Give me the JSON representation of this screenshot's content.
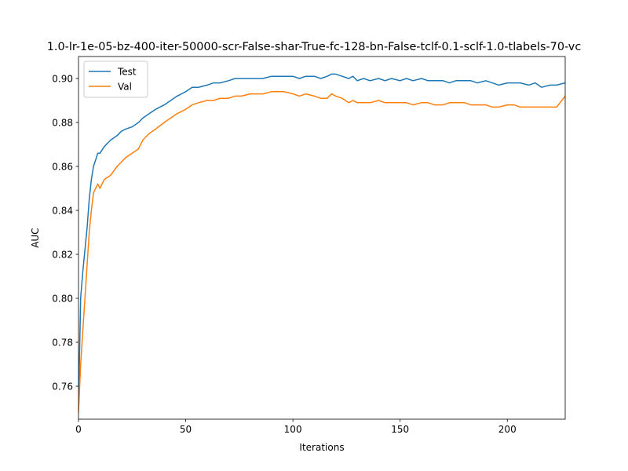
{
  "chart_data": {
    "type": "line",
    "title": "1.0-lr-1e-05-bz-400-iter-50000-scr-False-shar-True-fc-128-bn-False-tclf-0.1-sclf-1.0-tlabels-70-vc",
    "xlabel": "Iterations",
    "ylabel": "AUC",
    "xlim": [
      0,
      227
    ],
    "ylim": [
      0.745,
      0.91
    ],
    "xticks": [
      0,
      50,
      100,
      150,
      200
    ],
    "yticks": [
      0.76,
      0.78,
      0.8,
      0.82,
      0.84,
      0.86,
      0.88,
      0.9
    ],
    "ytick_labels": [
      "0.76",
      "0.78",
      "0.80",
      "0.82",
      "0.84",
      "0.86",
      "0.88",
      "0.90"
    ],
    "xtick_labels": [
      "0",
      "50",
      "100",
      "150",
      "200"
    ],
    "grid": false,
    "legend_position": "top-left",
    "series": [
      {
        "name": "Test",
        "color": "#1f77b4",
        "points": [
          [
            0,
            0.75
          ],
          [
            1,
            0.8
          ],
          [
            2,
            0.812
          ],
          [
            3,
            0.822
          ],
          [
            4,
            0.832
          ],
          [
            5,
            0.845
          ],
          [
            6,
            0.854
          ],
          [
            7,
            0.86
          ],
          [
            8,
            0.863
          ],
          [
            9,
            0.866
          ],
          [
            10,
            0.866
          ],
          [
            12,
            0.869
          ],
          [
            15,
            0.872
          ],
          [
            18,
            0.874
          ],
          [
            20,
            0.876
          ],
          [
            22,
            0.877
          ],
          [
            25,
            0.878
          ],
          [
            28,
            0.88
          ],
          [
            30,
            0.882
          ],
          [
            33,
            0.884
          ],
          [
            36,
            0.886
          ],
          [
            40,
            0.888
          ],
          [
            43,
            0.89
          ],
          [
            46,
            0.892
          ],
          [
            50,
            0.894
          ],
          [
            53,
            0.896
          ],
          [
            56,
            0.896
          ],
          [
            60,
            0.897
          ],
          [
            63,
            0.898
          ],
          [
            66,
            0.898
          ],
          [
            70,
            0.899
          ],
          [
            73,
            0.9
          ],
          [
            76,
            0.9
          ],
          [
            80,
            0.9
          ],
          [
            83,
            0.9
          ],
          [
            86,
            0.9
          ],
          [
            90,
            0.901
          ],
          [
            93,
            0.901
          ],
          [
            96,
            0.901
          ],
          [
            100,
            0.901
          ],
          [
            103,
            0.9
          ],
          [
            106,
            0.901
          ],
          [
            110,
            0.901
          ],
          [
            113,
            0.9
          ],
          [
            116,
            0.901
          ],
          [
            118,
            0.902
          ],
          [
            120,
            0.902
          ],
          [
            123,
            0.901
          ],
          [
            126,
            0.9
          ],
          [
            128,
            0.901
          ],
          [
            130,
            0.899
          ],
          [
            133,
            0.9
          ],
          [
            136,
            0.899
          ],
          [
            140,
            0.9
          ],
          [
            143,
            0.899
          ],
          [
            146,
            0.9
          ],
          [
            150,
            0.899
          ],
          [
            153,
            0.9
          ],
          [
            156,
            0.899
          ],
          [
            160,
            0.9
          ],
          [
            163,
            0.899
          ],
          [
            166,
            0.899
          ],
          [
            170,
            0.899
          ],
          [
            173,
            0.898
          ],
          [
            176,
            0.899
          ],
          [
            180,
            0.899
          ],
          [
            183,
            0.899
          ],
          [
            186,
            0.898
          ],
          [
            190,
            0.899
          ],
          [
            193,
            0.898
          ],
          [
            196,
            0.897
          ],
          [
            200,
            0.898
          ],
          [
            203,
            0.898
          ],
          [
            206,
            0.898
          ],
          [
            210,
            0.897
          ],
          [
            213,
            0.898
          ],
          [
            216,
            0.896
          ],
          [
            220,
            0.897
          ],
          [
            223,
            0.897
          ],
          [
            227,
            0.898
          ]
        ]
      },
      {
        "name": "Val",
        "color": "#ff7f0e",
        "points": [
          [
            0,
            0.748
          ],
          [
            1,
            0.77
          ],
          [
            2,
            0.785
          ],
          [
            3,
            0.8
          ],
          [
            4,
            0.815
          ],
          [
            5,
            0.83
          ],
          [
            6,
            0.84
          ],
          [
            7,
            0.848
          ],
          [
            8,
            0.85
          ],
          [
            9,
            0.852
          ],
          [
            10,
            0.85
          ],
          [
            12,
            0.854
          ],
          [
            15,
            0.856
          ],
          [
            18,
            0.86
          ],
          [
            20,
            0.862
          ],
          [
            22,
            0.864
          ],
          [
            25,
            0.866
          ],
          [
            28,
            0.868
          ],
          [
            30,
            0.872
          ],
          [
            33,
            0.875
          ],
          [
            36,
            0.877
          ],
          [
            40,
            0.88
          ],
          [
            43,
            0.882
          ],
          [
            46,
            0.884
          ],
          [
            50,
            0.886
          ],
          [
            53,
            0.888
          ],
          [
            56,
            0.889
          ],
          [
            60,
            0.89
          ],
          [
            63,
            0.89
          ],
          [
            66,
            0.891
          ],
          [
            70,
            0.891
          ],
          [
            73,
            0.892
          ],
          [
            76,
            0.892
          ],
          [
            80,
            0.893
          ],
          [
            83,
            0.893
          ],
          [
            86,
            0.893
          ],
          [
            90,
            0.894
          ],
          [
            93,
            0.894
          ],
          [
            96,
            0.894
          ],
          [
            100,
            0.893
          ],
          [
            103,
            0.892
          ],
          [
            106,
            0.893
          ],
          [
            110,
            0.892
          ],
          [
            113,
            0.891
          ],
          [
            116,
            0.891
          ],
          [
            118,
            0.893
          ],
          [
            120,
            0.892
          ],
          [
            123,
            0.891
          ],
          [
            126,
            0.889
          ],
          [
            128,
            0.89
          ],
          [
            130,
            0.889
          ],
          [
            133,
            0.889
          ],
          [
            136,
            0.889
          ],
          [
            140,
            0.89
          ],
          [
            143,
            0.889
          ],
          [
            146,
            0.889
          ],
          [
            150,
            0.889
          ],
          [
            153,
            0.889
          ],
          [
            156,
            0.888
          ],
          [
            160,
            0.889
          ],
          [
            163,
            0.889
          ],
          [
            166,
            0.888
          ],
          [
            170,
            0.888
          ],
          [
            173,
            0.889
          ],
          [
            176,
            0.889
          ],
          [
            180,
            0.889
          ],
          [
            183,
            0.888
          ],
          [
            186,
            0.888
          ],
          [
            190,
            0.888
          ],
          [
            193,
            0.887
          ],
          [
            196,
            0.887
          ],
          [
            200,
            0.888
          ],
          [
            203,
            0.888
          ],
          [
            206,
            0.887
          ],
          [
            210,
            0.887
          ],
          [
            213,
            0.887
          ],
          [
            216,
            0.887
          ],
          [
            220,
            0.887
          ],
          [
            223,
            0.887
          ],
          [
            227,
            0.892
          ]
        ]
      }
    ]
  }
}
